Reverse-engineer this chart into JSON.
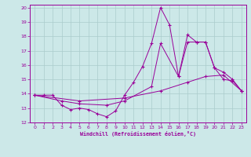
{
  "xlabel": "Windchill (Refroidissement éolien,°C)",
  "bg_color": "#cce8e8",
  "line_color": "#990099",
  "grid_color": "#aacccc",
  "xlim": [
    -0.5,
    23.5
  ],
  "ylim": [
    12,
    20.2
  ],
  "xticks": [
    0,
    1,
    2,
    3,
    4,
    5,
    6,
    7,
    8,
    9,
    10,
    11,
    12,
    13,
    14,
    15,
    16,
    17,
    18,
    19,
    20,
    21,
    22,
    23
  ],
  "yticks": [
    12,
    13,
    14,
    15,
    16,
    17,
    18,
    19,
    20
  ],
  "series1": [
    [
      0,
      13.9
    ],
    [
      1,
      13.9
    ],
    [
      2,
      13.9
    ],
    [
      3,
      13.2
    ],
    [
      4,
      12.9
    ],
    [
      5,
      13.0
    ],
    [
      6,
      12.9
    ],
    [
      7,
      12.6
    ],
    [
      8,
      12.4
    ],
    [
      9,
      12.8
    ],
    [
      10,
      13.9
    ],
    [
      11,
      14.8
    ],
    [
      12,
      15.9
    ],
    [
      13,
      17.5
    ],
    [
      14,
      20.0
    ],
    [
      15,
      18.8
    ],
    [
      16,
      15.2
    ],
    [
      17,
      18.1
    ],
    [
      18,
      17.6
    ],
    [
      19,
      17.6
    ],
    [
      20,
      15.8
    ],
    [
      21,
      15.0
    ],
    [
      22,
      14.9
    ],
    [
      23,
      14.2
    ]
  ],
  "series2": [
    [
      0,
      13.9
    ],
    [
      3,
      13.5
    ],
    [
      5,
      13.3
    ],
    [
      8,
      13.2
    ],
    [
      10,
      13.5
    ],
    [
      13,
      14.5
    ],
    [
      14,
      17.5
    ],
    [
      16,
      15.2
    ],
    [
      17,
      17.6
    ],
    [
      18,
      17.6
    ],
    [
      19,
      17.6
    ],
    [
      20,
      15.8
    ],
    [
      21,
      15.5
    ],
    [
      22,
      15.0
    ],
    [
      23,
      14.2
    ]
  ],
  "series3": [
    [
      0,
      13.9
    ],
    [
      5,
      13.5
    ],
    [
      10,
      13.7
    ],
    [
      14,
      14.2
    ],
    [
      17,
      14.8
    ],
    [
      19,
      15.2
    ],
    [
      21,
      15.3
    ],
    [
      23,
      14.2
    ]
  ]
}
